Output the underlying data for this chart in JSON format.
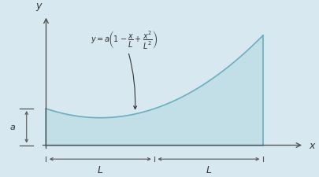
{
  "background_color": "#d8e8f0",
  "fill_color": "#c2dfe8",
  "curve_color": "#6ab0c0",
  "axis_color": "#555555",
  "text_color": "#333333",
  "L": 1.0,
  "a": 1.0,
  "formula": "$y = a\\!\\left(1-\\dfrac{x}{L}+\\dfrac{x^2}{L^2}\\right)$",
  "x_label": "$x$",
  "y_label": "$y$",
  "a_label": "$a$",
  "L_label": "$L$",
  "figsize": [
    4.06,
    2.26
  ],
  "dpi": 100
}
